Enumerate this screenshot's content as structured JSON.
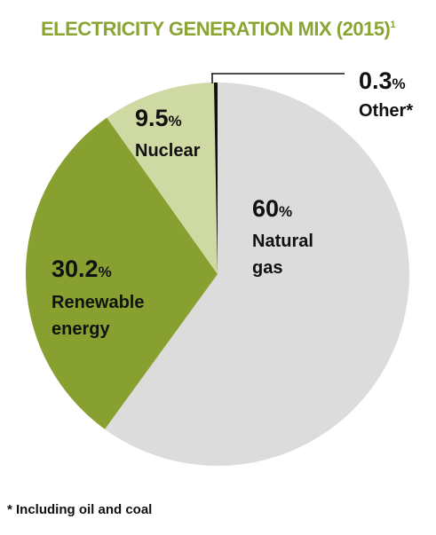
{
  "title": "ELECTRICITY GENERATION MIX (2015)",
  "title_marker": "1",
  "footnote": "* Including oil and coal",
  "colors": {
    "title": "#8ba534",
    "natural_gas": "#dcdcdc",
    "renewable": "#87a02f",
    "nuclear": "#cfd9a3",
    "other": "#111111"
  },
  "chart_data": {
    "type": "pie",
    "title": "ELECTRICITY GENERATION MIX (2015)",
    "slices": [
      {
        "name": "Natural gas",
        "value": 60,
        "value_label": "60",
        "unit": "%",
        "name_lines": [
          "Natural",
          "gas"
        ]
      },
      {
        "name": "Renewable energy",
        "value": 30.2,
        "value_label": "30.2",
        "unit": "%",
        "name_lines": [
          "Renewable",
          "energy"
        ]
      },
      {
        "name": "Nuclear",
        "value": 9.5,
        "value_label": "9.5",
        "unit": "%",
        "name_lines": [
          "Nuclear"
        ]
      },
      {
        "name": "Other*",
        "value": 0.3,
        "value_label": "0.3",
        "unit": "%",
        "name_lines": [
          "Other*"
        ]
      }
    ]
  }
}
